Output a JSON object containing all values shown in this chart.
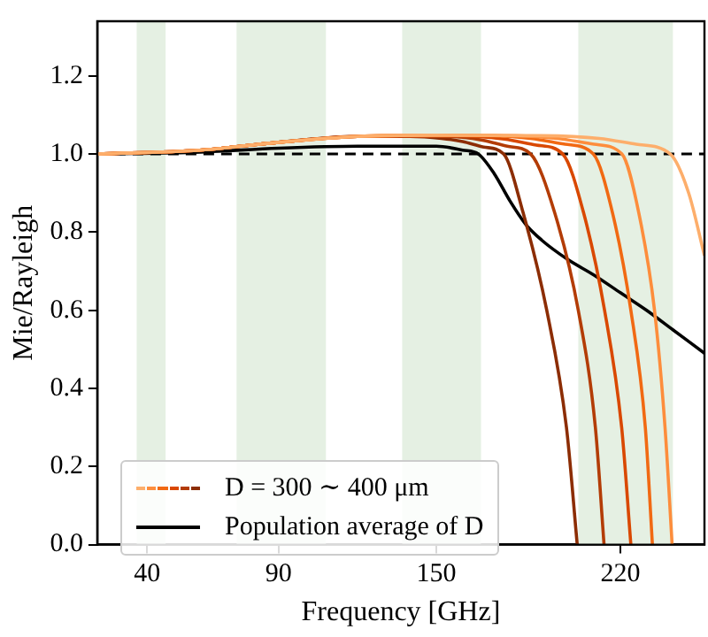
{
  "chart_data": {
    "type": "line",
    "xlabel": "Frequency [GHz]",
    "ylabel": "Mie/Rayleigh",
    "xlim": [
      21,
      252
    ],
    "xticks": [
      40,
      90,
      150,
      220
    ],
    "ylim": [
      0,
      1.34
    ],
    "yticks": [
      {
        "value": 0,
        "label": "0.0"
      },
      0.2,
      0.4,
      0.6,
      0.8,
      {
        "value": 1,
        "label": "1.0"
      },
      1.2
    ],
    "grid": false,
    "legend": "bottom left",
    "marker": "none",
    "line_style": "solid",
    "series": [
      {
        "color": "#fdae6b",
        "x": [
          21,
          60,
          90,
          120,
          150,
          190,
          212,
          226,
          239,
          246,
          252
        ],
        "values": [
          1.0,
          1.01,
          1.03,
          1.045,
          1.048,
          1.047,
          1.04,
          1.025,
          1.0,
          0.9,
          0.74
        ]
      },
      {
        "color": "#fd8d3c",
        "x": [
          21,
          60,
          90,
          120,
          150,
          180,
          196,
          210,
          220.6,
          227,
          233,
          237,
          239.7
        ],
        "values": [
          1.0,
          1.01,
          1.03,
          1.045,
          1.048,
          1.047,
          1.04,
          1.025,
          1.0,
          0.85,
          0.6,
          0.3,
          0.0
        ]
      },
      {
        "color": "#f16913",
        "x": [
          21,
          60,
          90,
          120,
          150,
          172,
          186,
          199,
          209.7,
          217,
          224,
          229.5,
          232.2
        ],
        "values": [
          1.0,
          1.01,
          1.03,
          1.045,
          1.048,
          1.047,
          1.04,
          1.025,
          1.0,
          0.85,
          0.6,
          0.3,
          0.0
        ]
      },
      {
        "color": "#d94801",
        "x": [
          21,
          60,
          90,
          120,
          150,
          165,
          176,
          188,
          198.1,
          206,
          214,
          220.5,
          224
        ],
        "values": [
          1.0,
          1.01,
          1.03,
          1.045,
          1.047,
          1.045,
          1.038,
          1.023,
          1.0,
          0.85,
          0.6,
          0.3,
          0.0
        ]
      },
      {
        "color": "#b33c06",
        "x": [
          21,
          60,
          90,
          120,
          150,
          160,
          168,
          177,
          185.9,
          195,
          204,
          210.5,
          213.8
        ],
        "values": [
          1.0,
          1.01,
          1.03,
          1.045,
          1.045,
          1.043,
          1.035,
          1.02,
          1.0,
          0.85,
          0.6,
          0.3,
          0.0
        ]
      },
      {
        "name": "D = 300 ∼ 400 μm",
        "color": "#8c2d04",
        "x": [
          21,
          60,
          90,
          120,
          140,
          152,
          160,
          168,
          175.6,
          183,
          192,
          199.5,
          203.6
        ],
        "values": [
          1.0,
          1.01,
          1.03,
          1.045,
          1.045,
          1.04,
          1.032,
          1.018,
          1.0,
          0.85,
          0.6,
          0.3,
          0.0
        ]
      },
      {
        "name": "Population average of D",
        "color": "#000000",
        "x": [
          21,
          60,
          90,
          120,
          150,
          160,
          166,
          172,
          178,
          184,
          190,
          200,
          210,
          220,
          230,
          240,
          252
        ],
        "values": [
          1.0,
          1.005,
          1.015,
          1.02,
          1.02,
          1.01,
          1.0,
          0.95,
          0.88,
          0.82,
          0.78,
          0.73,
          0.69,
          0.645,
          0.6,
          0.55,
          0.49
        ]
      }
    ],
    "ref_lines": [
      {
        "axis": "y",
        "value": 1.0,
        "color": "#000000",
        "line_style": "dashed"
      }
    ],
    "bands": [
      {
        "axis": "x",
        "from": 36,
        "to": 47,
        "color": "#e5f0e3"
      },
      {
        "axis": "x",
        "from": 74,
        "to": 108,
        "color": "#e5f0e3"
      },
      {
        "axis": "x",
        "from": 137,
        "to": 167,
        "color": "#e5f0e3"
      },
      {
        "axis": "x",
        "from": 204,
        "to": 240,
        "color": "#e5f0e3"
      }
    ]
  }
}
